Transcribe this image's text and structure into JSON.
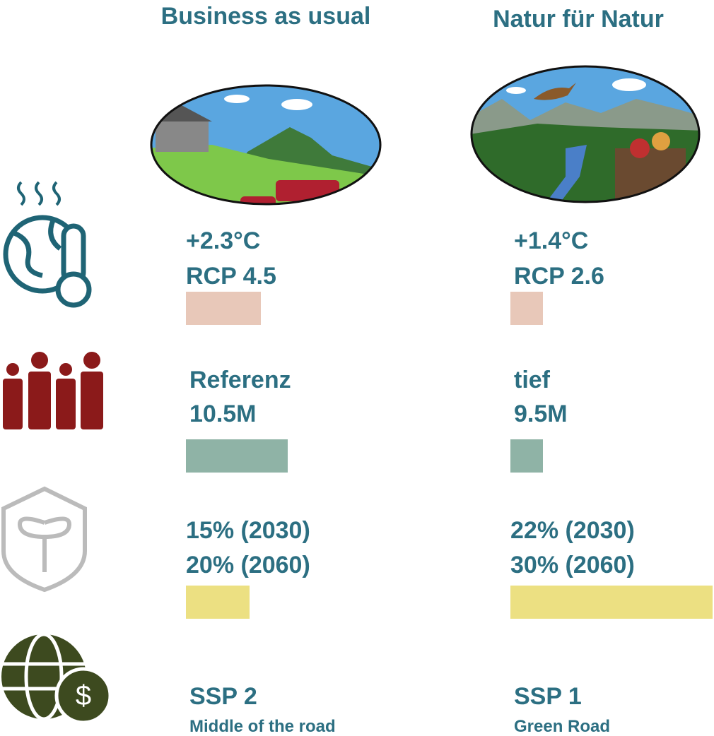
{
  "columns": [
    {
      "title": "Business as usual",
      "climate": [
        "+2.3°C",
        "RCP 4.5"
      ],
      "population": [
        "Referenz",
        "10.5M"
      ],
      "protected_area": [
        "15% (2030)",
        "20% (2060)"
      ],
      "economy": [
        "SSP 2",
        "Middle of the road"
      ]
    },
    {
      "title": "Natur für Natur",
      "climate": [
        "+1.4°C",
        "RCP 2.6"
      ],
      "population": [
        "tief",
        "9.5M"
      ],
      "protected_area": [
        "22% (2030)",
        "30% (2060)"
      ],
      "economy": [
        "SSP 1",
        "Green Road"
      ]
    }
  ]
}
